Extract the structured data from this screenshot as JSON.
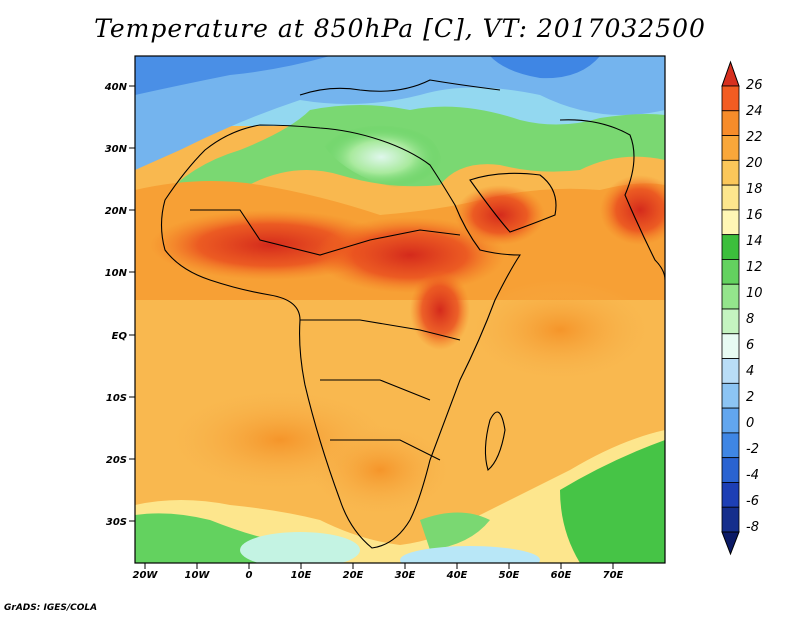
{
  "title": "Temperature at 850hPa [C], VT: 2017032500",
  "credit": "GrADS: IGES/COLA",
  "map": {
    "lon_ticks": [
      "20W",
      "10W",
      "0",
      "10E",
      "20E",
      "30E",
      "40E",
      "50E",
      "60E",
      "70E"
    ],
    "lat_ticks": [
      "40N",
      "30N",
      "20N",
      "10N",
      "EQ",
      "10S",
      "20S",
      "30S"
    ]
  },
  "colorbar": {
    "labels": [
      "26",
      "24",
      "22",
      "20",
      "18",
      "16",
      "14",
      "12",
      "10",
      "8",
      "6",
      "4",
      "2",
      "0",
      "-2",
      "-4",
      "-6",
      "-8"
    ],
    "colors": [
      "#d7301f",
      "#f25c22",
      "#f78c2a",
      "#f9a73a",
      "#fbc75a",
      "#fde68d",
      "#fff7b5",
      "#3cbf3c",
      "#63d25f",
      "#94e58c",
      "#c4f3c0",
      "#e8fbf3",
      "#b9ddf7",
      "#8cc4f3",
      "#62a6ee",
      "#3f86e4",
      "#2a63d1",
      "#1d3fb5",
      "#152e8c",
      "#0b1a66"
    ]
  }
}
